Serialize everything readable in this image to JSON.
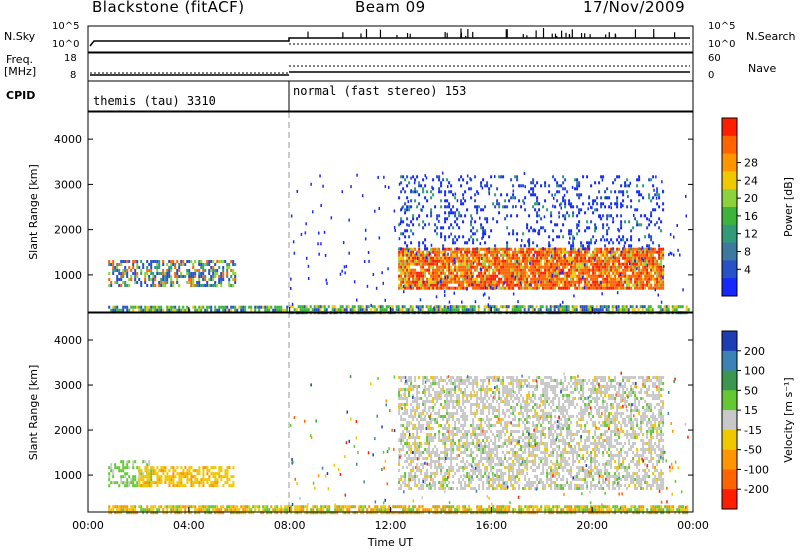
{
  "header": {
    "title": "Blackstone (fitACF)",
    "beam": "Beam 09",
    "date": "17/Nov/2009"
  },
  "status_panels": {
    "noise": {
      "left_label": "N.Sky",
      "left_ticks": [
        "10^5",
        "10^0"
      ],
      "right_label": "N.Search",
      "right_ticks": [
        "10^5",
        "10^0"
      ]
    },
    "freq": {
      "left_label_1": "Freq.",
      "left_label_2": "[MHz]",
      "left_ticks": [
        "18",
        "8"
      ],
      "right_label": "Nave",
      "right_ticks": [
        "60",
        "0"
      ]
    },
    "cpid": {
      "label": "CPID",
      "segments": [
        {
          "text": "themis (tau) 3310"
        },
        {
          "text": "normal (fast stereo) 153"
        }
      ]
    }
  },
  "chart_data": [
    {
      "type": "heatmap",
      "name": "power",
      "ylabel": "Slant Range [km]",
      "yticks": [
        1000,
        2000,
        3000,
        4000
      ],
      "ylim": [
        180,
        4600
      ],
      "xlim_hours": [
        0,
        24
      ],
      "colorbar": {
        "label": "Power [dB]",
        "ticks": [
          "4",
          "8",
          "12",
          "16",
          "20",
          "24",
          "28"
        ],
        "colors": [
          "#1428ff",
          "#2850c8",
          "#3c78a0",
          "#329a78",
          "#3cb43c",
          "#8cd23c",
          "#f0c800",
          "#ff9600",
          "#ff6400",
          "#ff1e00"
        ]
      },
      "regions": [
        {
          "t": [
            0.8,
            5.8
          ],
          "r": [
            780,
            1330
          ],
          "class": "mixed"
        },
        {
          "t": [
            0.8,
            8.0
          ],
          "r": [
            190,
            320
          ],
          "class": "ground"
        },
        {
          "t": [
            8.0,
            23.8
          ],
          "r": [
            190,
            330
          ],
          "class": "ground"
        },
        {
          "t": [
            12.3,
            22.8
          ],
          "r": [
            700,
            1600
          ],
          "class": "strong"
        },
        {
          "t": [
            12.3,
            22.8
          ],
          "r": [
            1600,
            3200
          ],
          "class": "weak"
        }
      ]
    },
    {
      "type": "heatmap",
      "name": "velocity",
      "ylabel": "Slant Range [km]",
      "yticks": [
        1000,
        2000,
        3000,
        4000
      ],
      "ylim": [
        180,
        4600
      ],
      "xticks": [
        "00:00",
        "04:00",
        "08:00",
        "12:00",
        "16:00",
        "20:00",
        "00:00"
      ],
      "xlabel": "Time UT",
      "colorbar": {
        "label": "Velocity [m s⁻¹]",
        "ticks": [
          "200",
          "100",
          "50",
          "15",
          "-15",
          "-50",
          "-100",
          "-200"
        ],
        "colors": [
          "#1e3cb4",
          "#3c82b4",
          "#3c9650",
          "#64c832",
          "#c8c8c8",
          "#f0c800",
          "#ff9600",
          "#ff6400",
          "#ff1e00"
        ]
      },
      "regions": [
        {
          "t": [
            0.8,
            2.5
          ],
          "r": [
            780,
            1330
          ],
          "class": "green"
        },
        {
          "t": [
            2.0,
            5.8
          ],
          "r": [
            800,
            1200
          ],
          "class": "orange"
        },
        {
          "t": [
            0.8,
            23.8
          ],
          "r": [
            190,
            330
          ],
          "class": "ground"
        },
        {
          "t": [
            12.3,
            22.8
          ],
          "r": [
            700,
            3200
          ],
          "class": "gray"
        }
      ]
    }
  ]
}
